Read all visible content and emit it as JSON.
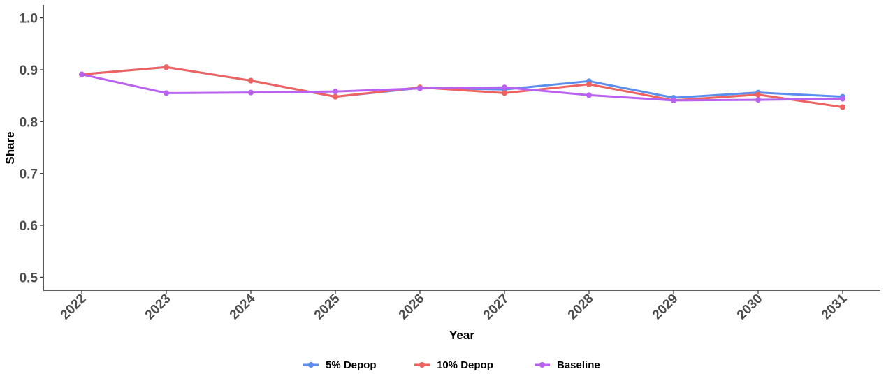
{
  "chart_data": {
    "type": "line",
    "xlabel": "Year",
    "ylabel": "Share",
    "x": [
      "2022",
      "2023",
      "2024",
      "2025",
      "2026",
      "2027",
      "2028",
      "2029",
      "2030",
      "2031"
    ],
    "ylim": [
      0.475,
      1.025
    ],
    "yticks": [
      0.5,
      0.6,
      0.7,
      0.8,
      0.9,
      1.0
    ],
    "ytick_labels": [
      "0.5",
      "0.6",
      "0.7",
      "0.8",
      "0.9",
      "1.0"
    ],
    "grid": false,
    "legend_position": "bottom",
    "series": [
      {
        "name": "5% Depop",
        "color": "#5B8DEF",
        "values": [
          0.891,
          0.905,
          0.879,
          0.848,
          0.865,
          0.862,
          0.878,
          0.846,
          0.856,
          0.848
        ]
      },
      {
        "name": "10% Depop",
        "color": "#EE6260",
        "values": [
          0.891,
          0.905,
          0.879,
          0.848,
          0.866,
          0.855,
          0.872,
          0.841,
          0.852,
          0.828
        ]
      },
      {
        "name": "Baseline",
        "color": "#B962F2",
        "values": [
          0.891,
          0.855,
          0.856,
          0.858,
          0.864,
          0.866,
          0.851,
          0.841,
          0.842,
          0.844
        ]
      }
    ]
  }
}
